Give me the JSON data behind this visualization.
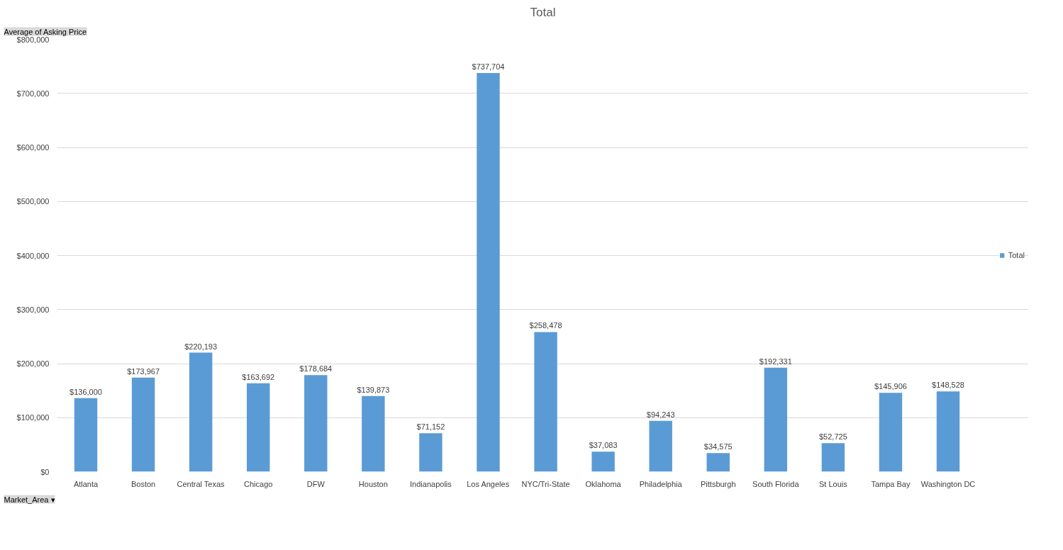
{
  "chart_data": {
    "type": "bar",
    "title": "Total",
    "categories": [
      "Atlanta",
      "Boston",
      "Central Texas",
      "Chicago",
      "DFW",
      "Houston",
      "Indianapolis",
      "Los Angeles",
      "NYC/Tri-State",
      "Oklahoma",
      "Philadelphia",
      "Pittsburgh",
      "South Florida",
      "St Louis",
      "Tampa Bay",
      "Washington DC"
    ],
    "series": [
      {
        "name": "Total",
        "color": "#5b9bd5",
        "values": [
          136000,
          173967,
          220193,
          163692,
          178684,
          139873,
          71152,
          737704,
          258478,
          37083,
          94243,
          34575,
          192331,
          52725,
          145906,
          148528
        ],
        "value_labels": [
          "$136,000",
          "$173,967",
          "$220,193",
          "$163,692",
          "$178,684",
          "$139,873",
          "$71,152",
          "$737,704",
          "$258,478",
          "$37,083",
          "$94,243",
          "$34,575",
          "$192,331",
          "$52,725",
          "$145,906",
          "$148,528"
        ]
      }
    ],
    "ylim": [
      0,
      800000
    ],
    "yticks": [
      {
        "value": 0,
        "label": "$0"
      },
      {
        "value": 100000,
        "label": "$100,000"
      },
      {
        "value": 200000,
        "label": "$200,000"
      },
      {
        "value": 300000,
        "label": "$300,000"
      },
      {
        "value": 400000,
        "label": "$400,000"
      },
      {
        "value": 500000,
        "label": "$500,000"
      },
      {
        "value": 600000,
        "label": "$600,000"
      },
      {
        "value": 700000,
        "label": "$700,000"
      },
      {
        "value": 800000,
        "label": "$800,000"
      }
    ],
    "grid": "y",
    "legend": "right",
    "annotations": [
      "Average of Asking Price",
      "Market_Area ▾"
    ]
  }
}
